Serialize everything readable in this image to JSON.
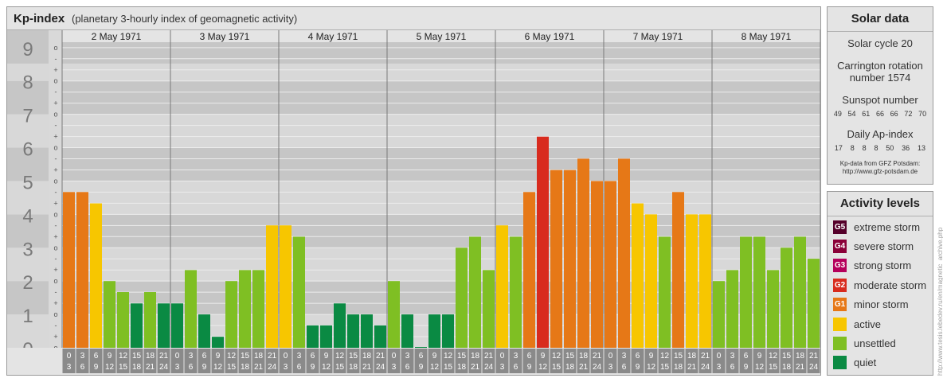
{
  "header": {
    "title": "Kp-index",
    "subtitle": "(planetary 3-hourly index of geomagnetic activity)"
  },
  "chart_data": {
    "type": "bar",
    "y_ticks": [
      "0",
      "1",
      "2",
      "3",
      "4",
      "5",
      "6",
      "7",
      "8",
      "9"
    ],
    "y_minor_labels": [
      "+",
      "o",
      "-"
    ],
    "ylim": [
      0,
      9.33
    ],
    "days": [
      "2 May 1971",
      "3 May 1971",
      "4 May 1971",
      "5 May 1971",
      "6 May 1971",
      "7 May 1971",
      "8 May 1971"
    ],
    "interval_start_labels": [
      "0",
      "3",
      "6",
      "9",
      "12",
      "15",
      "18",
      "21"
    ],
    "interval_end_labels": [
      "3",
      "6",
      "9",
      "12",
      "15",
      "18",
      "21",
      "24"
    ],
    "values": [
      [
        4.67,
        4.67,
        4.33,
        2.0,
        1.67,
        1.33,
        1.67,
        1.33
      ],
      [
        1.33,
        2.33,
        1.0,
        0.33,
        2.0,
        2.33,
        2.33,
        3.67
      ],
      [
        3.67,
        3.33,
        0.67,
        0.67,
        1.33,
        1.0,
        1.0,
        0.67
      ],
      [
        2.0,
        1.0,
        0.0,
        1.0,
        1.0,
        3.0,
        3.33,
        2.33
      ],
      [
        3.67,
        3.33,
        4.67,
        6.33,
        5.33,
        5.33,
        5.67,
        5.0
      ],
      [
        5.0,
        5.67,
        4.33,
        4.0,
        3.33,
        4.67,
        4.0,
        4.0
      ],
      [
        2.0,
        2.33,
        3.33,
        3.33,
        2.33,
        3.0,
        3.33,
        2.67
      ]
    ],
    "grid": true
  },
  "colors": {
    "quiet": "#0a8a43",
    "unsettled": "#7fbf23",
    "active": "#f7c600",
    "G1": "#e67817",
    "G2": "#d82b1e",
    "G3": "#b5005b",
    "G4": "#8a0038",
    "G5": "#55002a"
  },
  "solar": {
    "title": "Solar data",
    "solar_cycle": "Solar cycle 20",
    "carrington_line1": "Carrington rotation",
    "carrington_line2": "number 1574",
    "sunspot_label": "Sunspot number",
    "sunspot_values": [
      "49",
      "54",
      "61",
      "66",
      "66",
      "72",
      "70"
    ],
    "ap_label": "Daily Ap-index",
    "ap_values": [
      "17",
      "8",
      "8",
      "8",
      "50",
      "36",
      "13"
    ],
    "credit_line1": "Kp-data from GFZ Potsdam:",
    "credit_line2": "http://www.gfz-potsdam.de"
  },
  "activity": {
    "title": "Activity levels",
    "items": [
      {
        "badge": "G5",
        "label": "extreme storm",
        "color": "#55002a"
      },
      {
        "badge": "G4",
        "label": "severe storm",
        "color": "#8a0038"
      },
      {
        "badge": "G3",
        "label": "strong storm",
        "color": "#b5005b"
      },
      {
        "badge": "G2",
        "label": "moderate storm",
        "color": "#d82b1e"
      },
      {
        "badge": "G1",
        "label": "minor storm",
        "color": "#e67817"
      },
      {
        "badge": "",
        "label": "active",
        "color": "#f7c600"
      },
      {
        "badge": "",
        "label": "unsettled",
        "color": "#7fbf23"
      },
      {
        "badge": "",
        "label": "quiet",
        "color": "#0a8a43"
      }
    ]
  },
  "watermark": "http://www.tesis.lebedev.ru/en/magnetic_archive.php"
}
